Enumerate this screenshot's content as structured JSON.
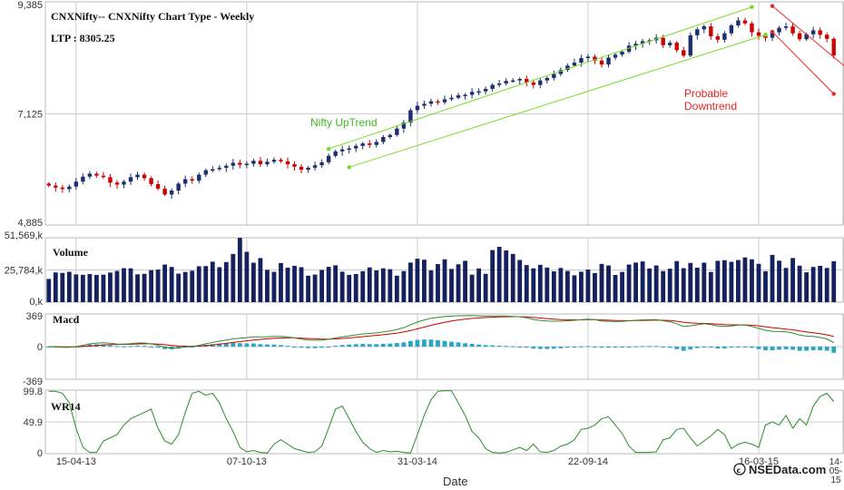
{
  "chart_data": {
    "type": "candlestick",
    "title": "CNXNifty-- CNXNifty Chart Type - Weekly",
    "ltp_label": "LTP : 8305.25",
    "xlabel": "Date",
    "x_ticks": [
      "15-04-13",
      "07-10-13",
      "31-03-14",
      "22-09-14",
      "16-03-15"
    ],
    "x_tick_weeks": [
      4,
      29,
      54,
      79,
      104
    ],
    "x_edge_label": [
      "14-",
      "05-",
      "15"
    ],
    "weeks_total": 117,
    "colors": {
      "up": "#1c2f6e",
      "down": "#cc0000",
      "volume": "#14215e",
      "macd": "#2e8b2e",
      "signal": "#cc0000",
      "hist": "#2aa7c0",
      "wr": "#2e8b2e",
      "grid": "#cccccc",
      "uptrend": "#77dd22",
      "downtrend": "#ee2222"
    },
    "price": {
      "ylim": [
        4885,
        9385
      ],
      "y_ticks": [
        "4,885",
        "7,125",
        "9,385"
      ],
      "close": [
        5680,
        5640,
        5610,
        5660,
        5760,
        5860,
        5920,
        5880,
        5850,
        5740,
        5700,
        5760,
        5850,
        5900,
        5830,
        5710,
        5620,
        5500,
        5580,
        5720,
        5810,
        5780,
        5900,
        5990,
        6010,
        6040,
        6080,
        6140,
        6100,
        6120,
        6180,
        6110,
        6160,
        6200,
        6170,
        6110,
        6060,
        6000,
        6040,
        6090,
        6150,
        6280,
        6370,
        6410,
        6430,
        6480,
        6530,
        6500,
        6560,
        6660,
        6700,
        6830,
        6950,
        7200,
        7290,
        7330,
        7380,
        7360,
        7420,
        7450,
        7500,
        7510,
        7570,
        7580,
        7630,
        7710,
        7740,
        7790,
        7800,
        7830,
        7760,
        7710,
        7800,
        7850,
        7930,
        8010,
        8100,
        8160,
        8250,
        8280,
        8200,
        8120,
        8260,
        8320,
        8380,
        8500,
        8540,
        8590,
        8610,
        8660,
        8510,
        8560,
        8410,
        8300,
        8710,
        8830,
        8890,
        8690,
        8620,
        8750,
        8910,
        9010,
        8950,
        8770,
        8700,
        8660,
        8770,
        8860,
        8890,
        8750,
        8630,
        8730,
        8810,
        8720,
        8640,
        8305
      ],
      "uptrend_label": "Nifty UpTrend",
      "downtrend_label": [
        "Probable",
        "Downtrend"
      ],
      "channel_up": {
        "lower": [
          [
            44,
            6050
          ],
          [
            105,
            8720
          ]
        ],
        "upper": [
          [
            41,
            6420
          ],
          [
            103,
            9280
          ]
        ]
      },
      "channel_down": {
        "upper": [
          [
            106,
            9300
          ],
          [
            117,
            8040
          ]
        ],
        "lower": [
          [
            106,
            8780
          ],
          [
            115,
            7530
          ]
        ]
      }
    },
    "volume": {
      "title": "Volume",
      "ylim": [
        0,
        51569
      ],
      "y_ticks": [
        "51,569,k",
        "25,784,k",
        "0,k"
      ],
      "values": [
        18600,
        23800,
        23400,
        24300,
        22200,
        21900,
        22500,
        21800,
        22000,
        23700,
        25000,
        27200,
        27100,
        22300,
        22700,
        25600,
        26100,
        30100,
        28200,
        22800,
        24200,
        25200,
        28700,
        28900,
        32400,
        28000,
        32100,
        38600,
        51500,
        40300,
        31600,
        35300,
        25900,
        24300,
        31300,
        27600,
        29100,
        28000,
        21200,
        22100,
        25800,
        28300,
        29500,
        24400,
        21800,
        22500,
        24800,
        27800,
        25400,
        27100,
        26400,
        21200,
        24900,
        31700,
        34800,
        34000,
        25400,
        30500,
        34300,
        26600,
        30300,
        33100,
        22000,
        27000,
        22700,
        41700,
        44300,
        41400,
        38600,
        33800,
        29700,
        27100,
        29900,
        27700,
        24700,
        27400,
        25000,
        21500,
        24400,
        26100,
        23300,
        30600,
        29400,
        21800,
        24200,
        30100,
        31700,
        32600,
        27000,
        29400,
        24900,
        26800,
        32900,
        27200,
        31400,
        27600,
        31600,
        24200,
        33100,
        33600,
        32300,
        33700,
        35800,
        34300,
        30700,
        24800,
        37800,
        33200,
        27400,
        35300,
        29200,
        23900,
        28200,
        29100,
        27400,
        32800
      ]
    },
    "macd": {
      "title": "Macd",
      "ylim": [
        -369,
        369
      ],
      "y_ticks": [
        "369",
        "0",
        "-369"
      ]
    },
    "wr14": {
      "title": "WR14",
      "ylim": [
        0,
        99.8
      ],
      "y_ticks": [
        "99.8",
        "49.9",
        "0"
      ],
      "values": [
        98,
        98,
        95,
        80,
        40,
        10,
        2,
        2,
        20,
        25,
        30,
        45,
        55,
        60,
        65,
        70,
        40,
        20,
        15,
        30,
        65,
        95,
        98,
        92,
        95,
        80,
        55,
        35,
        10,
        3,
        5,
        2,
        1,
        15,
        22,
        15,
        8,
        5,
        2,
        3,
        12,
        40,
        70,
        75,
        55,
        35,
        18,
        8,
        2,
        5,
        3,
        4,
        2,
        1,
        30,
        60,
        85,
        98,
        99,
        99,
        80,
        60,
        35,
        25,
        8,
        2,
        1,
        2,
        6,
        10,
        5,
        15,
        3,
        2,
        5,
        12,
        15,
        22,
        38,
        40,
        45,
        55,
        58,
        45,
        32,
        12,
        2,
        2,
        2,
        3,
        22,
        25,
        38,
        40,
        25,
        12,
        20,
        28,
        38,
        30,
        8,
        15,
        18,
        15,
        10,
        45,
        50,
        45,
        60,
        40,
        55,
        45,
        75,
        90,
        95,
        82
      ]
    },
    "watermark": "NSEData.com"
  }
}
